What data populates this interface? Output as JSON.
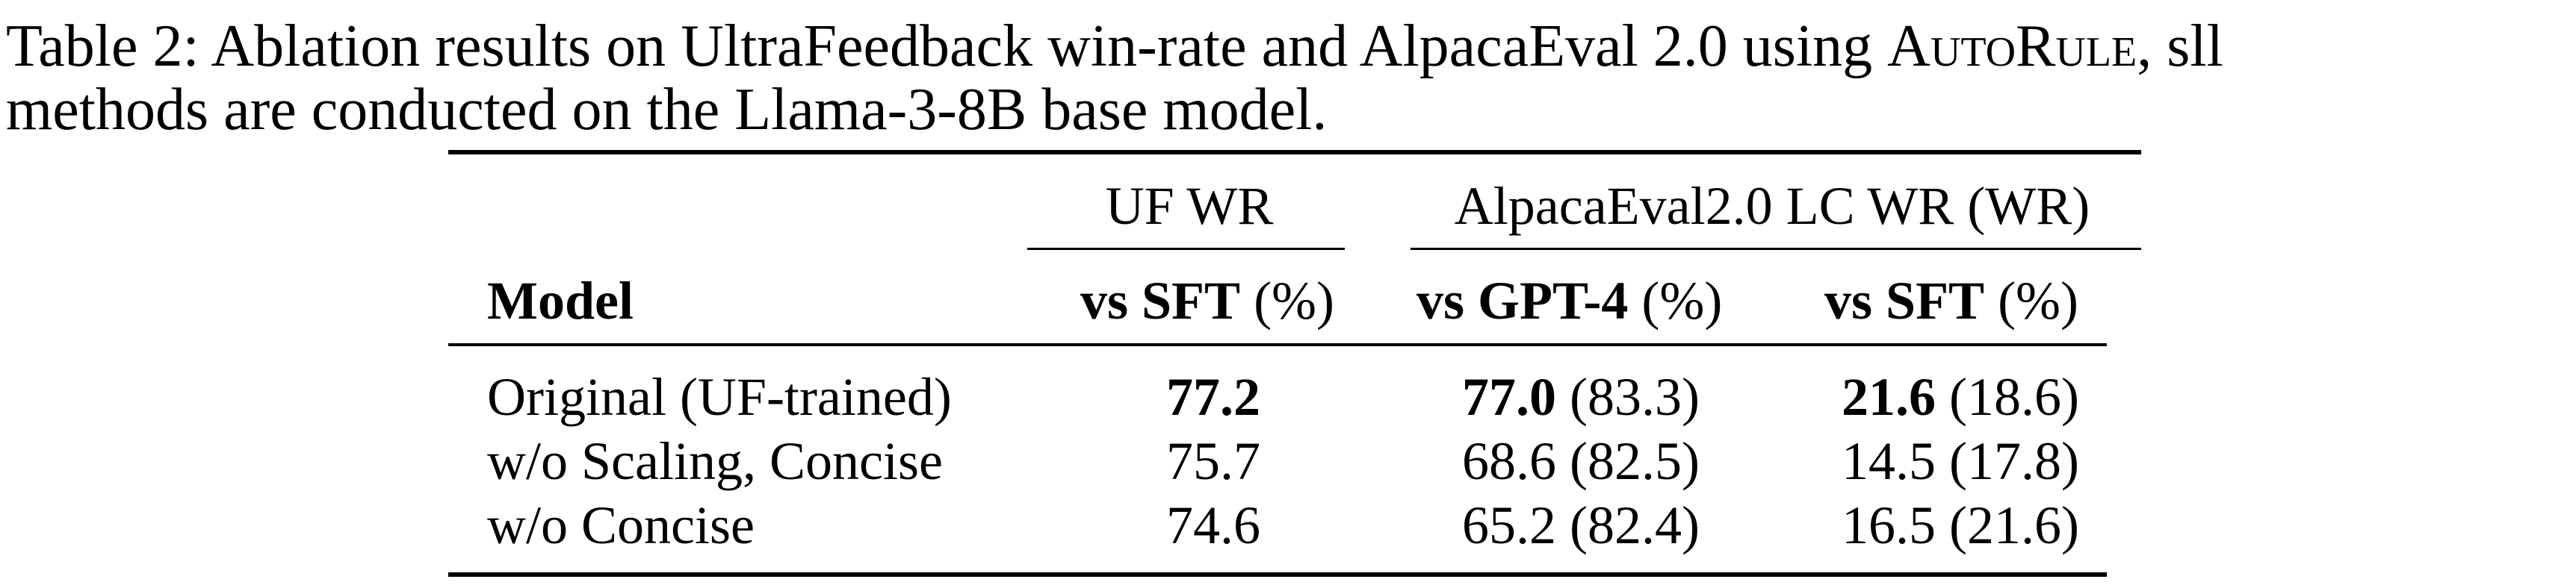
{
  "caption": {
    "line1_prefix": "Table 2: Ablation results on UltraFeedback win-rate and AlpacaEval 2.0 using ",
    "method_name": "AutoRule",
    "line1_suffix": ", sll",
    "line2": "methods are conducted on the Llama-3-8B base model."
  },
  "table": {
    "group_headers": {
      "uf": "UF WR",
      "alpaca": "AlpacaEval2.0 LC WR (WR)"
    },
    "columns": {
      "model": "Model",
      "uf_vs_sft": {
        "bold": "vs SFT",
        "rest": " (%)"
      },
      "ae_vs_gpt4": {
        "bold": "vs GPT-4",
        "rest": " (%)"
      },
      "ae_vs_sft": {
        "bold": "vs SFT",
        "rest": " (%)"
      }
    },
    "rows": [
      {
        "model": "Original (UF-trained)",
        "uf": "77.2",
        "gpt4_lc": "77.0",
        "gpt4_wr": " (83.3)",
        "sft_lc": "21.6",
        "sft_wr": " (18.6)"
      },
      {
        "model": "w/o Scaling, Concise",
        "uf": "75.7",
        "gpt4_lc": "68.6",
        "gpt4_wr": " (82.5)",
        "sft_lc": "14.5",
        "sft_wr": " (17.8)"
      },
      {
        "model": "w/o Concise",
        "uf": "74.6",
        "gpt4_lc": "65.2",
        "gpt4_wr": " (82.4)",
        "sft_lc": "16.5",
        "sft_wr": " (21.6)"
      }
    ]
  }
}
